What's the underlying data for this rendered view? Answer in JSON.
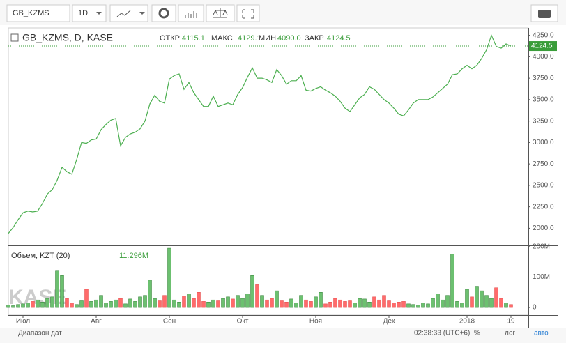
{
  "toolbar": {
    "symbol": "GB_KZMS",
    "interval": "1D"
  },
  "legend": {
    "title": "GB_KZMS, D, KASE",
    "open_label": "ОТКР",
    "open": "4115.1",
    "high_label": "МАКС",
    "high": "4129.1",
    "low_label": "МИН",
    "low": "4090.0",
    "close_label": "ЗАКР",
    "close": "4124.5"
  },
  "volume_legend": {
    "title": "Объем, KZT (20)",
    "value": "11.296M"
  },
  "watermark": "KASE",
  "footer": {
    "range": "Диапазон дат",
    "time": "02:38:33 (UTC+6)",
    "percent": "%",
    "log": "лог",
    "auto": "авто"
  },
  "chart_data": [
    {
      "type": "line",
      "color": "#4caf50",
      "categories": [
        null,
        null,
        null,
        "Июл",
        null,
        null,
        null,
        null,
        null,
        null,
        null,
        null,
        null,
        null,
        null,
        null,
        null,
        null,
        "Авг",
        null,
        null,
        null,
        null,
        null,
        null,
        null,
        null,
        null,
        null,
        null,
        null,
        null,
        null,
        "Сен",
        null,
        null,
        null,
        null,
        null,
        null,
        null,
        null,
        null,
        null,
        null,
        null,
        null,
        null,
        "Окт",
        null,
        null,
        null,
        null,
        null,
        null,
        null,
        null,
        null,
        null,
        null,
        null,
        null,
        null,
        "Ноя",
        null,
        null,
        null,
        null,
        null,
        null,
        null,
        null,
        null,
        null,
        null,
        null,
        null,
        null,
        "Дек",
        null,
        null,
        null,
        null,
        null,
        null,
        null,
        null,
        null,
        null,
        null,
        null,
        null,
        null,
        null,
        "2018",
        null,
        null,
        null,
        null,
        null,
        null,
        null,
        null,
        "19"
      ],
      "values": [
        1940,
        2010,
        2100,
        2180,
        2200,
        2190,
        2200,
        2290,
        2400,
        2450,
        2560,
        2710,
        2660,
        2630,
        2800,
        3000,
        2990,
        3030,
        3040,
        3150,
        3210,
        3260,
        3280,
        2960,
        3060,
        3100,
        3120,
        3160,
        3250,
        3450,
        3550,
        3480,
        3460,
        3740,
        3780,
        3800,
        3620,
        3700,
        3580,
        3500,
        3420,
        3420,
        3540,
        3420,
        3440,
        3460,
        3440,
        3560,
        3640,
        3760,
        3870,
        3750,
        3750,
        3730,
        3700,
        3850,
        3780,
        3680,
        3720,
        3720,
        3780,
        3610,
        3600,
        3630,
        3650,
        3610,
        3580,
        3540,
        3480,
        3400,
        3360,
        3440,
        3520,
        3560,
        3650,
        3620,
        3560,
        3500,
        3460,
        3400,
        3330,
        3310,
        3380,
        3460,
        3500,
        3500,
        3500,
        3530,
        3580,
        3630,
        3680,
        3790,
        3800,
        3860,
        3900,
        3860,
        3900,
        3980,
        4080,
        4250,
        4120,
        4100,
        4150,
        4124.5
      ],
      "ylim": [
        1800,
        4320
      ],
      "yticks": [
        {
          "value": 2000,
          "label": "2000.0"
        },
        {
          "value": 2250,
          "label": "2250.0"
        },
        {
          "value": 2500,
          "label": "2500.0"
        },
        {
          "value": 2750,
          "label": "2750.0"
        },
        {
          "value": 3000,
          "label": "3000.0"
        },
        {
          "value": 3250,
          "label": "3250.0"
        },
        {
          "value": 3500,
          "label": "3500.0"
        },
        {
          "value": 3750,
          "label": "3750.0"
        },
        {
          "value": 4000,
          "label": "4000.0"
        },
        {
          "value": 4250,
          "label": "4250.0"
        }
      ]
    },
    {
      "type": "bar",
      "up_color": "#6cc070",
      "down_color": "#ff6b6b",
      "values": [
        8,
        6,
        10,
        12,
        15,
        20,
        25,
        18,
        30,
        35,
        120,
        105,
        30,
        15,
        10,
        22,
        60,
        20,
        25,
        40,
        15,
        20,
        25,
        30,
        12,
        28,
        20,
        35,
        40,
        90,
        30,
        22,
        40,
        195,
        25,
        18,
        38,
        45,
        30,
        50,
        20,
        18,
        25,
        22,
        30,
        35,
        28,
        40,
        30,
        45,
        105,
        75,
        40,
        25,
        30,
        55,
        22,
        18,
        28,
        15,
        40,
        25,
        20,
        35,
        50,
        12,
        18,
        30,
        25,
        20,
        22,
        15,
        30,
        28,
        18,
        35,
        25,
        40,
        22,
        15,
        18,
        20,
        12,
        10,
        8,
        15,
        12,
        30,
        45,
        25,
        40,
        175,
        20,
        15,
        60,
        35,
        70,
        55,
        40,
        30,
        65,
        30,
        15,
        10
      ],
      "ylim": [
        -25,
        202
      ],
      "yticks": [
        {
          "value": 200,
          "label": "200M"
        },
        {
          "value": 100,
          "label": "100M"
        },
        0
      ]
    }
  ]
}
